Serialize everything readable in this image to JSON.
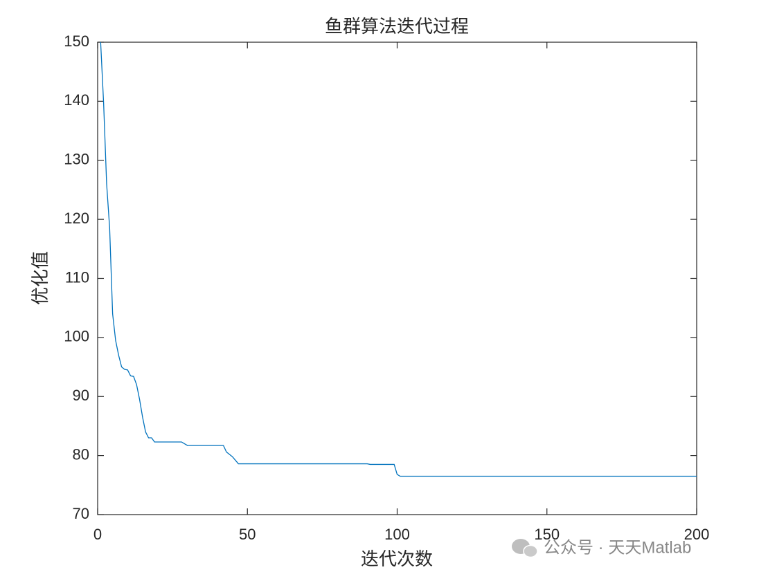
{
  "chart_data": {
    "type": "line",
    "title": "鱼群算法迭代过程",
    "xlabel": "迭代次数",
    "ylabel": "优化值",
    "x": [
      1,
      2,
      3,
      4,
      5,
      6,
      7,
      8,
      9,
      10,
      11,
      12,
      13,
      14,
      15,
      16,
      17,
      18,
      19,
      28,
      29,
      30,
      42,
      43,
      44,
      45,
      46,
      47,
      90,
      91,
      99,
      100,
      101,
      200
    ],
    "series": [
      {
        "name": "优化值",
        "color": "#0072bd",
        "values": [
          150,
          139.6,
          126,
          118.6,
          104,
          99.5,
          97,
          95,
          94.6,
          94.5,
          93.5,
          93.4,
          92,
          89.5,
          86.5,
          84,
          83,
          83,
          82.3,
          82.3,
          82,
          81.7,
          81.7,
          80.6,
          80.2,
          79.8,
          79.2,
          78.6,
          78.6,
          78.5,
          78.5,
          76.8,
          76.5,
          76.5
        ]
      }
    ],
    "xlim": [
      0,
      200
    ],
    "xticks": [
      0,
      50,
      100,
      150,
      200
    ],
    "ylim": [
      70,
      150
    ],
    "yticks": [
      70,
      80,
      90,
      100,
      110,
      120,
      130,
      140,
      150
    ],
    "grid": false
  },
  "watermark": "公众号 · 天天Matlab"
}
